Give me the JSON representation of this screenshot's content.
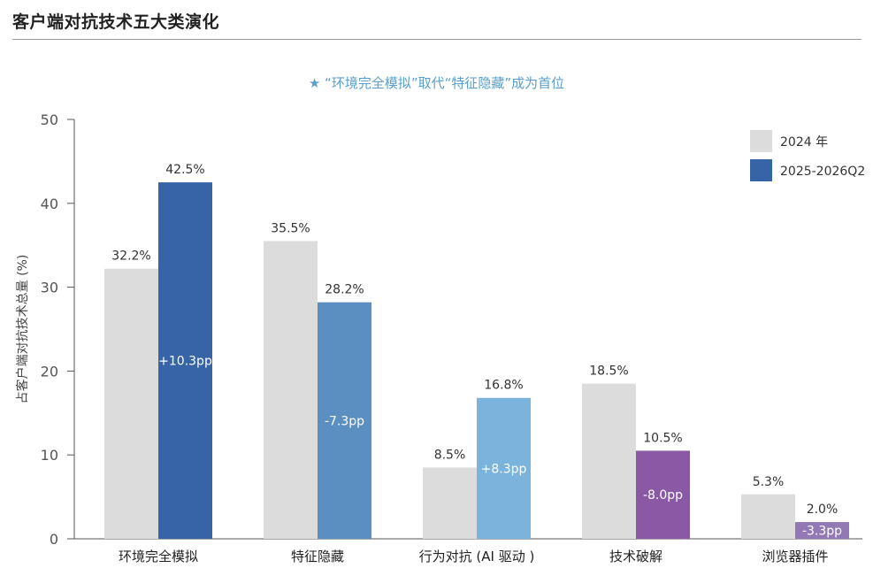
{
  "page": {
    "title": "客户端对抗技术五大类演化",
    "subtitle": "★ “环境完全模拟”取代“特征隐藏”成为首位"
  },
  "chart_data": {
    "type": "bar",
    "ylabel": "占客户端对抗技术总量 (%)",
    "xlabel": "",
    "ylim": [
      0,
      50
    ],
    "yticks": [
      0,
      10,
      20,
      30,
      40,
      50
    ],
    "grid": false,
    "legend_position": "top-right",
    "categories": [
      "环境完全模拟",
      "特征隐藏",
      "行为对抗 (AI 驱动 )",
      "技术破解",
      "浏览器插件"
    ],
    "series": [
      {
        "name": "2024 年",
        "values": [
          32.2,
          35.5,
          8.5,
          18.5,
          5.3
        ],
        "labels": [
          "32.2%",
          "35.5%",
          "8.5%",
          "18.5%",
          "5.3%"
        ],
        "color": "#dcdcdc"
      },
      {
        "name": "2025-2026Q2",
        "values": [
          42.5,
          28.2,
          16.8,
          10.5,
          2.0
        ],
        "labels": [
          "42.5%",
          "28.2%",
          "16.8%",
          "10.5%",
          "2.0%"
        ],
        "colors": [
          "#3764a6",
          "#5b8fc2",
          "#7ab4dc",
          "#8a58a4",
          "#9279b6"
        ],
        "legend_color": "#3764a6"
      }
    ],
    "changes": [
      "+10.3pp",
      "-7.3pp",
      "+8.3pp",
      "-8.0pp",
      "-3.3pp"
    ]
  }
}
